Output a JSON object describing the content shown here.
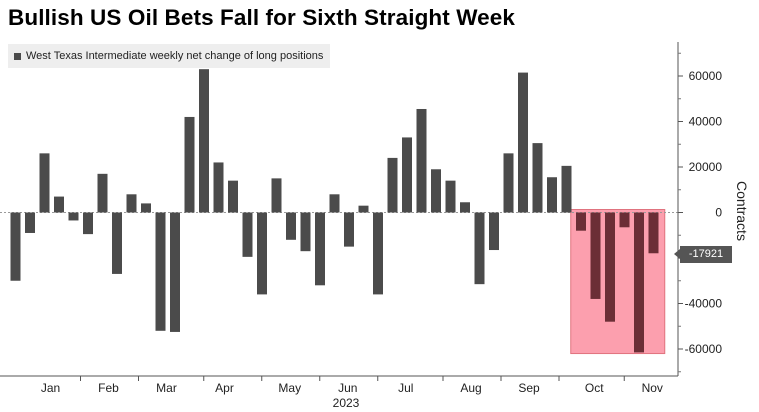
{
  "chart_data": {
    "type": "bar",
    "title": "Bullish US Oil Bets Fall for Sixth Straight Week",
    "legend": "West Texas Intermediate weekly net change of long positions",
    "ylabel": "Contracts",
    "ylim": [
      -72000,
      75000
    ],
    "yticks": [
      60000,
      40000,
      20000,
      0,
      -20000,
      -40000,
      -60000
    ],
    "ytick_labels": [
      "60000",
      "40000",
      "20000",
      "0",
      "-20000",
      "-40000",
      "-60000"
    ],
    "month_labels": [
      "Jan",
      "Feb",
      "Mar",
      "Apr",
      "May",
      "Jun",
      "Jul",
      "Aug",
      "Sep",
      "Oct",
      "Nov"
    ],
    "month_week_index": [
      2,
      6,
      10,
      14,
      18.5,
      22.5,
      26.5,
      31,
      35,
      39.5,
      43.5
    ],
    "year_label": "2023",
    "values": [
      -30000,
      -9000,
      26000,
      7000,
      -3500,
      -9500,
      17000,
      -27000,
      8000,
      4000,
      -52000,
      -52500,
      42000,
      63000,
      22000,
      14000,
      -19500,
      -36000,
      15000,
      -12000,
      -17000,
      -32000,
      8000,
      -15000,
      3000,
      -36000,
      24000,
      33000,
      45500,
      19000,
      14000,
      4500,
      -31500,
      -16500,
      26000,
      61500,
      30500,
      15500,
      20500,
      -8000,
      -38000,
      -48000,
      -6500,
      -61500,
      -17921
    ],
    "highlight": {
      "from_index": 39,
      "to_index": 44,
      "color": "#fc9fae",
      "border": "#e0737f"
    },
    "last_value_label": "-17921",
    "bar_color": "#4b4b4b",
    "highlight_bar_color": "#6b2e36"
  }
}
